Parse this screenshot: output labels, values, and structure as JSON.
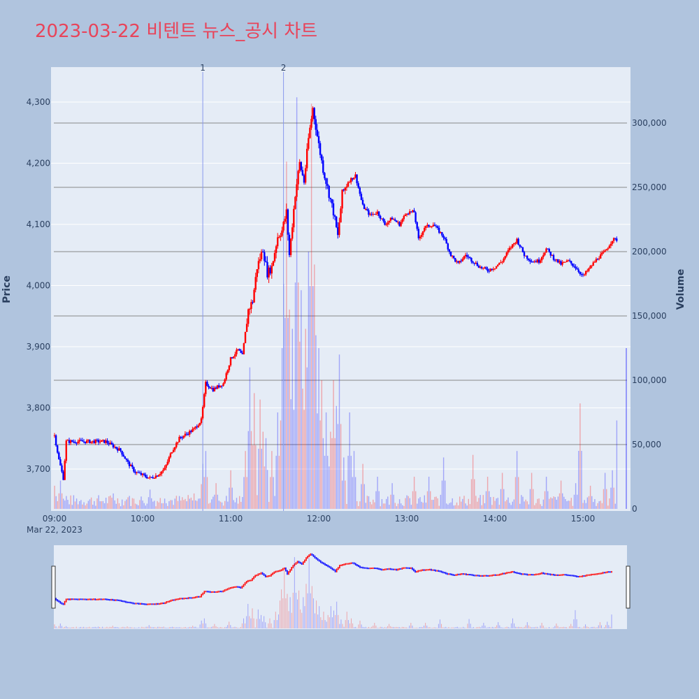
{
  "title": "2023-03-22 비텐트 뉴스_공시 차트",
  "colors": {
    "page_bg": "#b0c4de",
    "plot_bg": "#e5ecf6",
    "up": "#ff0000",
    "down": "#0000ff",
    "title": "#e8445a",
    "event_line": "#8899ee",
    "volume_grid": "#888888"
  },
  "chart_data": {
    "type": "candlestick",
    "xlabel": "",
    "date_label": "Mar 22, 2023",
    "ylabel": "Price",
    "y2label": "Volume",
    "ylim": [
      3635,
      4355
    ],
    "y2lim": [
      0,
      345000
    ],
    "y_ticks": [
      {
        "value": 3700,
        "label": "3,700"
      },
      {
        "value": 3800,
        "label": "3,800"
      },
      {
        "value": 3900,
        "label": "3,900"
      },
      {
        "value": 4000,
        "label": "4,000"
      },
      {
        "value": 4100,
        "label": "4,100"
      },
      {
        "value": 4200,
        "label": "4,200"
      },
      {
        "value": 4300,
        "label": "4,300"
      }
    ],
    "y2_ticks": [
      {
        "value": 0,
        "label": "0"
      },
      {
        "value": 50000,
        "label": "50,000"
      },
      {
        "value": 100000,
        "label": "100,000"
      },
      {
        "value": 150000,
        "label": "150,000"
      },
      {
        "value": 200000,
        "label": "200,000"
      },
      {
        "value": 250000,
        "label": "250,000"
      },
      {
        "value": 300000,
        "label": "300,000"
      }
    ],
    "x_ticks": [
      {
        "time": "09:00",
        "label": "09:00"
      },
      {
        "time": "10:00",
        "label": "10:00"
      },
      {
        "time": "11:00",
        "label": "11:00"
      },
      {
        "time": "12:00",
        "label": "12:00"
      },
      {
        "time": "13:00",
        "label": "13:00"
      },
      {
        "time": "14:00",
        "label": "14:00"
      },
      {
        "time": "15:00",
        "label": "15:00"
      }
    ],
    "x_range": [
      "09:00",
      "15:30"
    ],
    "events": [
      {
        "label": "1",
        "time": "10:41"
      },
      {
        "label": "2",
        "time": "11:36"
      }
    ],
    "price_path": [
      {
        "t": "09:00",
        "p": 3755
      },
      {
        "t": "09:03",
        "p": 3715
      },
      {
        "t": "09:06",
        "p": 3685
      },
      {
        "t": "09:08",
        "p": 3745
      },
      {
        "t": "09:15",
        "p": 3745
      },
      {
        "t": "09:25",
        "p": 3745
      },
      {
        "t": "09:35",
        "p": 3745
      },
      {
        "t": "09:45",
        "p": 3730
      },
      {
        "t": "09:50",
        "p": 3710
      },
      {
        "t": "09:55",
        "p": 3695
      },
      {
        "t": "10:00",
        "p": 3690
      },
      {
        "t": "10:05",
        "p": 3685
      },
      {
        "t": "10:10",
        "p": 3690
      },
      {
        "t": "10:15",
        "p": 3700
      },
      {
        "t": "10:20",
        "p": 3730
      },
      {
        "t": "10:25",
        "p": 3750
      },
      {
        "t": "10:35",
        "p": 3765
      },
      {
        "t": "10:40",
        "p": 3780
      },
      {
        "t": "10:43",
        "p": 3840
      },
      {
        "t": "10:48",
        "p": 3830
      },
      {
        "t": "10:55",
        "p": 3840
      },
      {
        "t": "11:00",
        "p": 3880
      },
      {
        "t": "11:05",
        "p": 3895
      },
      {
        "t": "11:08",
        "p": 3885
      },
      {
        "t": "11:12",
        "p": 3960
      },
      {
        "t": "11:15",
        "p": 3975
      },
      {
        "t": "11:18",
        "p": 4030
      },
      {
        "t": "11:22",
        "p": 4060
      },
      {
        "t": "11:25",
        "p": 4020
      },
      {
        "t": "11:28",
        "p": 4030
      },
      {
        "t": "11:32",
        "p": 4080
      },
      {
        "t": "11:35",
        "p": 4090
      },
      {
        "t": "11:38",
        "p": 4120
      },
      {
        "t": "11:40",
        "p": 4050
      },
      {
        "t": "11:44",
        "p": 4150
      },
      {
        "t": "11:47",
        "p": 4200
      },
      {
        "t": "11:50",
        "p": 4170
      },
      {
        "t": "11:53",
        "p": 4240
      },
      {
        "t": "11:56",
        "p": 4290
      },
      {
        "t": "12:00",
        "p": 4230
      },
      {
        "t": "12:03",
        "p": 4190
      },
      {
        "t": "12:06",
        "p": 4160
      },
      {
        "t": "12:10",
        "p": 4120
      },
      {
        "t": "12:13",
        "p": 4080
      },
      {
        "t": "12:16",
        "p": 4150
      },
      {
        "t": "12:20",
        "p": 4170
      },
      {
        "t": "12:25",
        "p": 4180
      },
      {
        "t": "12:30",
        "p": 4130
      },
      {
        "t": "12:35",
        "p": 4115
      },
      {
        "t": "12:40",
        "p": 4120
      },
      {
        "t": "12:45",
        "p": 4100
      },
      {
        "t": "12:50",
        "p": 4110
      },
      {
        "t": "12:55",
        "p": 4100
      },
      {
        "t": "13:00",
        "p": 4120
      },
      {
        "t": "13:05",
        "p": 4120
      },
      {
        "t": "13:08",
        "p": 4075
      },
      {
        "t": "13:12",
        "p": 4095
      },
      {
        "t": "13:18",
        "p": 4100
      },
      {
        "t": "13:25",
        "p": 4080
      },
      {
        "t": "13:30",
        "p": 4050
      },
      {
        "t": "13:35",
        "p": 4035
      },
      {
        "t": "13:40",
        "p": 4050
      },
      {
        "t": "13:45",
        "p": 4040
      },
      {
        "t": "13:50",
        "p": 4030
      },
      {
        "t": "13:55",
        "p": 4025
      },
      {
        "t": "14:00",
        "p": 4030
      },
      {
        "t": "14:05",
        "p": 4040
      },
      {
        "t": "14:10",
        "p": 4060
      },
      {
        "t": "14:15",
        "p": 4075
      },
      {
        "t": "14:20",
        "p": 4050
      },
      {
        "t": "14:25",
        "p": 4040
      },
      {
        "t": "14:30",
        "p": 4040
      },
      {
        "t": "14:35",
        "p": 4060
      },
      {
        "t": "14:40",
        "p": 4045
      },
      {
        "t": "14:45",
        "p": 4035
      },
      {
        "t": "14:50",
        "p": 4040
      },
      {
        "t": "14:55",
        "p": 4030
      },
      {
        "t": "15:00",
        "p": 4015
      },
      {
        "t": "15:05",
        "p": 4030
      },
      {
        "t": "15:10",
        "p": 4045
      },
      {
        "t": "15:15",
        "p": 4055
      },
      {
        "t": "15:20",
        "p": 4075
      },
      {
        "t": "15:23",
        "p": 4075
      }
    ],
    "volume_spikes": [
      {
        "t": "09:00",
        "v": 18000
      },
      {
        "t": "09:04",
        "v": 22000
      },
      {
        "t": "09:08",
        "v": 10000
      },
      {
        "t": "09:30",
        "v": 8000
      },
      {
        "t": "09:40",
        "v": 12000
      },
      {
        "t": "09:50",
        "v": 9000
      },
      {
        "t": "10:05",
        "v": 15000
      },
      {
        "t": "10:15",
        "v": 8000
      },
      {
        "t": "10:35",
        "v": 12000
      },
      {
        "t": "10:41",
        "v": 35000
      },
      {
        "t": "10:43",
        "v": 45000
      },
      {
        "t": "10:50",
        "v": 20000
      },
      {
        "t": "11:00",
        "v": 30000
      },
      {
        "t": "11:10",
        "v": 45000
      },
      {
        "t": "11:13",
        "v": 110000
      },
      {
        "t": "11:16",
        "v": 90000
      },
      {
        "t": "11:20",
        "v": 85000
      },
      {
        "t": "11:22",
        "v": 60000
      },
      {
        "t": "11:24",
        "v": 55000
      },
      {
        "t": "11:28",
        "v": 45000
      },
      {
        "t": "11:32",
        "v": 75000
      },
      {
        "t": "11:35",
        "v": 125000
      },
      {
        "t": "11:36",
        "v": 175000
      },
      {
        "t": "11:38",
        "v": 270000
      },
      {
        "t": "11:40",
        "v": 155000
      },
      {
        "t": "11:42",
        "v": 140000
      },
      {
        "t": "11:45",
        "v": 320000
      },
      {
        "t": "11:47",
        "v": 130000
      },
      {
        "t": "11:48",
        "v": 170000
      },
      {
        "t": "11:51",
        "v": 140000
      },
      {
        "t": "11:53",
        "v": 200000
      },
      {
        "t": "11:55",
        "v": 315000
      },
      {
        "t": "11:57",
        "v": 190000
      },
      {
        "t": "11:58",
        "v": 135000
      },
      {
        "t": "12:00",
        "v": 125000
      },
      {
        "t": "12:02",
        "v": 100000
      },
      {
        "t": "12:05",
        "v": 75000
      },
      {
        "t": "12:08",
        "v": 60000
      },
      {
        "t": "12:10",
        "v": 100000
      },
      {
        "t": "12:12",
        "v": 80000
      },
      {
        "t": "12:14",
        "v": 120000
      },
      {
        "t": "12:17",
        "v": 40000
      },
      {
        "t": "12:21",
        "v": 75000
      },
      {
        "t": "12:24",
        "v": 45000
      },
      {
        "t": "12:30",
        "v": 35000
      },
      {
        "t": "12:40",
        "v": 25000
      },
      {
        "t": "12:50",
        "v": 20000
      },
      {
        "t": "13:05",
        "v": 25000
      },
      {
        "t": "13:15",
        "v": 25000
      },
      {
        "t": "13:25",
        "v": 40000
      },
      {
        "t": "13:45",
        "v": 42000
      },
      {
        "t": "13:55",
        "v": 25000
      },
      {
        "t": "14:05",
        "v": 28000
      },
      {
        "t": "14:15",
        "v": 45000
      },
      {
        "t": "14:25",
        "v": 28000
      },
      {
        "t": "14:35",
        "v": 25000
      },
      {
        "t": "14:45",
        "v": 22000
      },
      {
        "t": "14:55",
        "v": 20000
      },
      {
        "t": "14:58",
        "v": 82000
      },
      {
        "t": "15:05",
        "v": 18000
      },
      {
        "t": "15:15",
        "v": 28000
      },
      {
        "t": "15:20",
        "v": 30000
      },
      {
        "t": "15:24",
        "v": 125000
      }
    ]
  }
}
